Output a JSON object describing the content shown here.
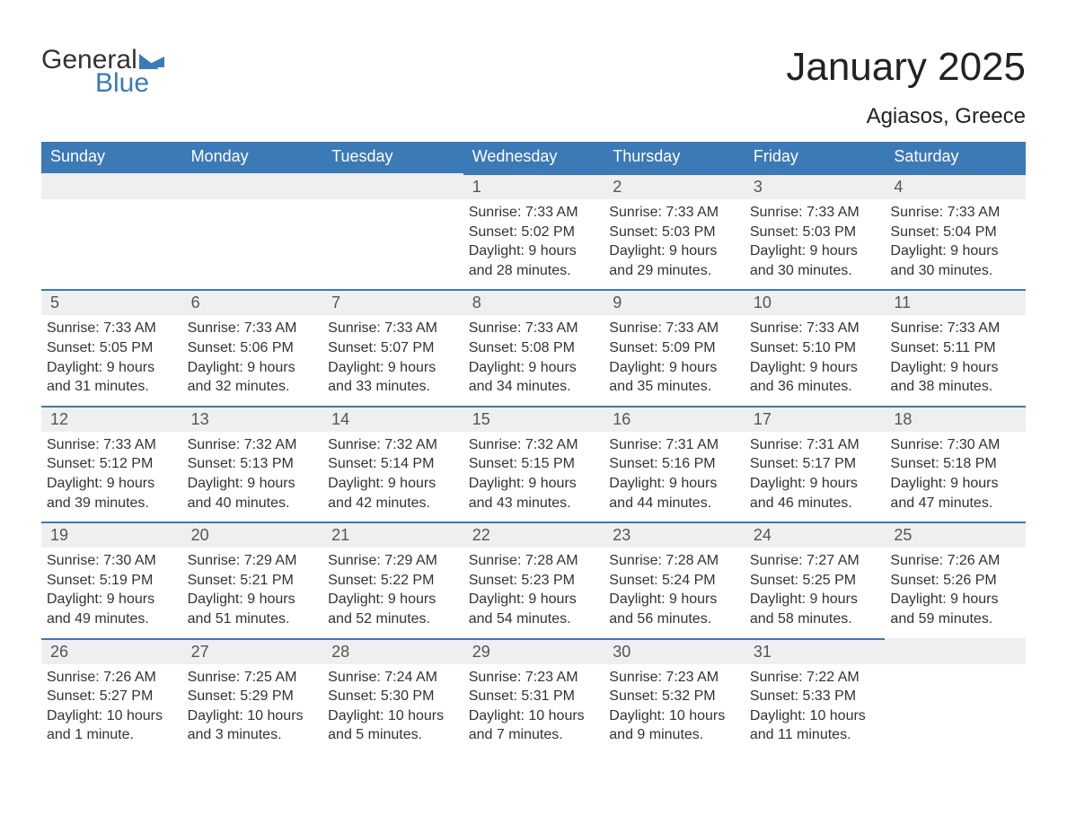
{
  "brand": {
    "part1": "General",
    "part2": "Blue",
    "color1": "#333333",
    "color2": "#3b79b7"
  },
  "title": "January 2025",
  "location": "Agiasos, Greece",
  "colors": {
    "header_bg": "#3b79b7",
    "header_fg": "#ffffff",
    "daynum_bg": "#efefef",
    "daynum_border": "#3b79b7",
    "text": "#333333",
    "background": "#ffffff"
  },
  "typography": {
    "title_fontsize": 44,
    "location_fontsize": 24,
    "dayhead_fontsize": 18,
    "cell_fontsize": 16
  },
  "layout": {
    "cols": 7,
    "rows": 6
  },
  "dayNames": [
    "Sunday",
    "Monday",
    "Tuesday",
    "Wednesday",
    "Thursday",
    "Friday",
    "Saturday"
  ],
  "days": [
    {
      "blank": true
    },
    {
      "blank": true
    },
    {
      "blank": true
    },
    {
      "n": "1",
      "sunrise": "7:33 AM",
      "sunset": "5:02 PM",
      "daylight": "9 hours and 28 minutes."
    },
    {
      "n": "2",
      "sunrise": "7:33 AM",
      "sunset": "5:03 PM",
      "daylight": "9 hours and 29 minutes."
    },
    {
      "n": "3",
      "sunrise": "7:33 AM",
      "sunset": "5:03 PM",
      "daylight": "9 hours and 30 minutes."
    },
    {
      "n": "4",
      "sunrise": "7:33 AM",
      "sunset": "5:04 PM",
      "daylight": "9 hours and 30 minutes."
    },
    {
      "n": "5",
      "sunrise": "7:33 AM",
      "sunset": "5:05 PM",
      "daylight": "9 hours and 31 minutes."
    },
    {
      "n": "6",
      "sunrise": "7:33 AM",
      "sunset": "5:06 PM",
      "daylight": "9 hours and 32 minutes."
    },
    {
      "n": "7",
      "sunrise": "7:33 AM",
      "sunset": "5:07 PM",
      "daylight": "9 hours and 33 minutes."
    },
    {
      "n": "8",
      "sunrise": "7:33 AM",
      "sunset": "5:08 PM",
      "daylight": "9 hours and 34 minutes."
    },
    {
      "n": "9",
      "sunrise": "7:33 AM",
      "sunset": "5:09 PM",
      "daylight": "9 hours and 35 minutes."
    },
    {
      "n": "10",
      "sunrise": "7:33 AM",
      "sunset": "5:10 PM",
      "daylight": "9 hours and 36 minutes."
    },
    {
      "n": "11",
      "sunrise": "7:33 AM",
      "sunset": "5:11 PM",
      "daylight": "9 hours and 38 minutes."
    },
    {
      "n": "12",
      "sunrise": "7:33 AM",
      "sunset": "5:12 PM",
      "daylight": "9 hours and 39 minutes."
    },
    {
      "n": "13",
      "sunrise": "7:32 AM",
      "sunset": "5:13 PM",
      "daylight": "9 hours and 40 minutes."
    },
    {
      "n": "14",
      "sunrise": "7:32 AM",
      "sunset": "5:14 PM",
      "daylight": "9 hours and 42 minutes."
    },
    {
      "n": "15",
      "sunrise": "7:32 AM",
      "sunset": "5:15 PM",
      "daylight": "9 hours and 43 minutes."
    },
    {
      "n": "16",
      "sunrise": "7:31 AM",
      "sunset": "5:16 PM",
      "daylight": "9 hours and 44 minutes."
    },
    {
      "n": "17",
      "sunrise": "7:31 AM",
      "sunset": "5:17 PM",
      "daylight": "9 hours and 46 minutes."
    },
    {
      "n": "18",
      "sunrise": "7:30 AM",
      "sunset": "5:18 PM",
      "daylight": "9 hours and 47 minutes."
    },
    {
      "n": "19",
      "sunrise": "7:30 AM",
      "sunset": "5:19 PM",
      "daylight": "9 hours and 49 minutes."
    },
    {
      "n": "20",
      "sunrise": "7:29 AM",
      "sunset": "5:21 PM",
      "daylight": "9 hours and 51 minutes."
    },
    {
      "n": "21",
      "sunrise": "7:29 AM",
      "sunset": "5:22 PM",
      "daylight": "9 hours and 52 minutes."
    },
    {
      "n": "22",
      "sunrise": "7:28 AM",
      "sunset": "5:23 PM",
      "daylight": "9 hours and 54 minutes."
    },
    {
      "n": "23",
      "sunrise": "7:28 AM",
      "sunset": "5:24 PM",
      "daylight": "9 hours and 56 minutes."
    },
    {
      "n": "24",
      "sunrise": "7:27 AM",
      "sunset": "5:25 PM",
      "daylight": "9 hours and 58 minutes."
    },
    {
      "n": "25",
      "sunrise": "7:26 AM",
      "sunset": "5:26 PM",
      "daylight": "9 hours and 59 minutes."
    },
    {
      "n": "26",
      "sunrise": "7:26 AM",
      "sunset": "5:27 PM",
      "daylight": "10 hours and 1 minute."
    },
    {
      "n": "27",
      "sunrise": "7:25 AM",
      "sunset": "5:29 PM",
      "daylight": "10 hours and 3 minutes."
    },
    {
      "n": "28",
      "sunrise": "7:24 AM",
      "sunset": "5:30 PM",
      "daylight": "10 hours and 5 minutes."
    },
    {
      "n": "29",
      "sunrise": "7:23 AM",
      "sunset": "5:31 PM",
      "daylight": "10 hours and 7 minutes."
    },
    {
      "n": "30",
      "sunrise": "7:23 AM",
      "sunset": "5:32 PM",
      "daylight": "10 hours and 9 minutes."
    },
    {
      "n": "31",
      "sunrise": "7:22 AM",
      "sunset": "5:33 PM",
      "daylight": "10 hours and 11 minutes."
    },
    {
      "blank": true
    }
  ],
  "labels": {
    "sunrise": "Sunrise",
    "sunset": "Sunset",
    "daylight": "Daylight"
  }
}
